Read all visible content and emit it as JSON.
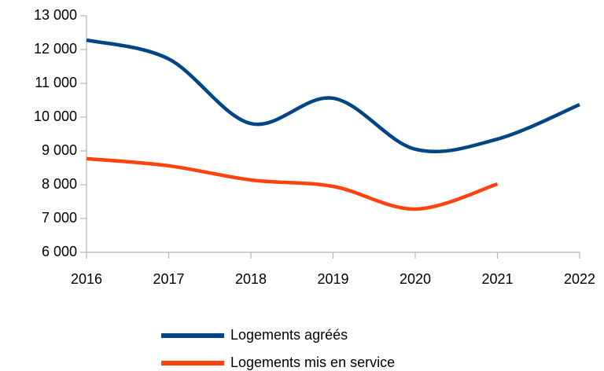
{
  "chart_data": {
    "type": "line",
    "x": [
      2016,
      2017,
      2018,
      2019,
      2020,
      2021,
      2022
    ],
    "series": [
      {
        "name": "Logements agréés",
        "color": "#004586",
        "values": [
          12280,
          11720,
          9810,
          10560,
          9050,
          9350,
          10370
        ]
      },
      {
        "name": "Logements mis en service",
        "color": "#ff420e",
        "values": [
          8770,
          8560,
          8140,
          7950,
          7280,
          8020,
          null
        ]
      }
    ],
    "xlim": [
      2016,
      2022
    ],
    "xticks": [
      2016,
      2017,
      2018,
      2019,
      2020,
      2021,
      2022
    ],
    "ylim": [
      6000,
      13000
    ],
    "yticks": [
      {
        "value": 6000,
        "label": "6 000"
      },
      {
        "value": 7000,
        "label": "7 000"
      },
      {
        "value": 8000,
        "label": "8 000"
      },
      {
        "value": 9000,
        "label": "9 000"
      },
      {
        "value": 10000,
        "label": "10 000"
      },
      {
        "value": 11000,
        "label": "11 000"
      },
      {
        "value": 12000,
        "label": "12 000"
      },
      {
        "value": 13000,
        "label": "13 000"
      }
    ],
    "smooth": true,
    "legend": "bottom"
  }
}
